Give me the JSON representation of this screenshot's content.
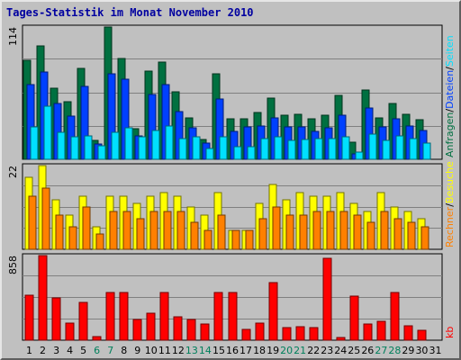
{
  "title": "Tages-Statistik im Monat November 2010",
  "colors": {
    "anfragen": "#007040",
    "dateien": "#0040ff",
    "seiten": "#00e0ff",
    "besuche": "#ffff00",
    "rechner": "#ff8000",
    "kb": "#ff0000",
    "weekday_label": "#000000",
    "weekend_label": "#00805c"
  },
  "chart_data": {
    "type": "bar",
    "categories": [
      "1",
      "2",
      "3",
      "4",
      "5",
      "6",
      "7",
      "8",
      "9",
      "10",
      "11",
      "12",
      "13",
      "14",
      "15",
      "16",
      "17",
      "18",
      "19",
      "20",
      "21",
      "22",
      "23",
      "24",
      "25",
      "26",
      "27",
      "28",
      "29",
      "30",
      "31"
    ],
    "weekend_days": [
      "6",
      "7",
      "13",
      "14",
      "20",
      "21",
      "27",
      "28"
    ],
    "panels": [
      {
        "id": "hits",
        "max_label": "114",
        "ymax": 114,
        "legend": [
          "Anfragen",
          "/",
          "Dateien",
          "/",
          "Seiten"
        ],
        "legend_colors": [
          "anfragen",
          "label",
          "dateien",
          "label",
          "seiten"
        ],
        "series": [
          {
            "name": "Anfragen",
            "color": "#007040",
            "values": [
              85,
              98,
              61,
              50,
              78,
              16,
              114,
              87,
              26,
              76,
              84,
              58,
              36,
              17,
              74,
              35,
              35,
              40,
              53,
              38,
              39,
              35,
              38,
              55,
              15,
              60,
              36,
              48,
              39,
              34,
              0
            ]
          },
          {
            "name": "Dateien",
            "color": "#0040ff",
            "values": [
              64,
              75,
              48,
              37,
              63,
              13,
              74,
              69,
              20,
              56,
              64,
              41,
              27,
              14,
              52,
              24,
              28,
              29,
              36,
              28,
              28,
              24,
              27,
              38,
              5,
              44,
              28,
              35,
              29,
              25,
              0
            ]
          },
          {
            "name": "Seiten",
            "color": "#00e0ff",
            "values": [
              28,
              46,
              23,
              19,
              20,
              12,
              23,
              27,
              19,
              25,
              29,
              18,
              19,
              9,
              19,
              11,
              11,
              18,
              19,
              16,
              17,
              18,
              18,
              19,
              6,
              22,
              16,
              20,
              18,
              14,
              0
            ]
          }
        ]
      },
      {
        "id": "visits",
        "max_label": "22",
        "ymax": 22,
        "legend": [
          "Rechner",
          "/",
          "Besuche"
        ],
        "legend_colors": [
          "rechner",
          "label",
          "besuche"
        ],
        "series": [
          {
            "name": "Besuche",
            "color": "#ffff00",
            "values": [
              19,
              22,
              13,
              9,
              14,
              6,
              14,
              14,
              12,
              14,
              15,
              14,
              11,
              9,
              15,
              5,
              5,
              12,
              17,
              13,
              15,
              14,
              14,
              15,
              12,
              10,
              15,
              11,
              10,
              8,
              0
            ]
          },
          {
            "name": "Rechner",
            "color": "#ff8000",
            "values": [
              14,
              16,
              9,
              6,
              11,
              4,
              10,
              10,
              8,
              10,
              10,
              10,
              7,
              5,
              9,
              5,
              5,
              8,
              11,
              9,
              9,
              10,
              10,
              10,
              9,
              7,
              10,
              8,
              7,
              6,
              0
            ]
          }
        ]
      },
      {
        "id": "kb",
        "max_label": "858",
        "ymax": 858,
        "legend": [
          "kb"
        ],
        "legend_colors": [
          "kb"
        ],
        "series": [
          {
            "name": "kb",
            "color": "#ff0000",
            "values": [
              460,
              858,
              425,
              175,
              385,
              35,
              480,
              480,
              210,
              270,
              480,
              240,
              210,
              160,
              480,
              480,
              110,
              170,
              580,
              130,
              140,
              125,
              830,
              30,
              450,
              165,
              190,
              480,
              150,
              100,
              0
            ]
          }
        ]
      }
    ]
  }
}
